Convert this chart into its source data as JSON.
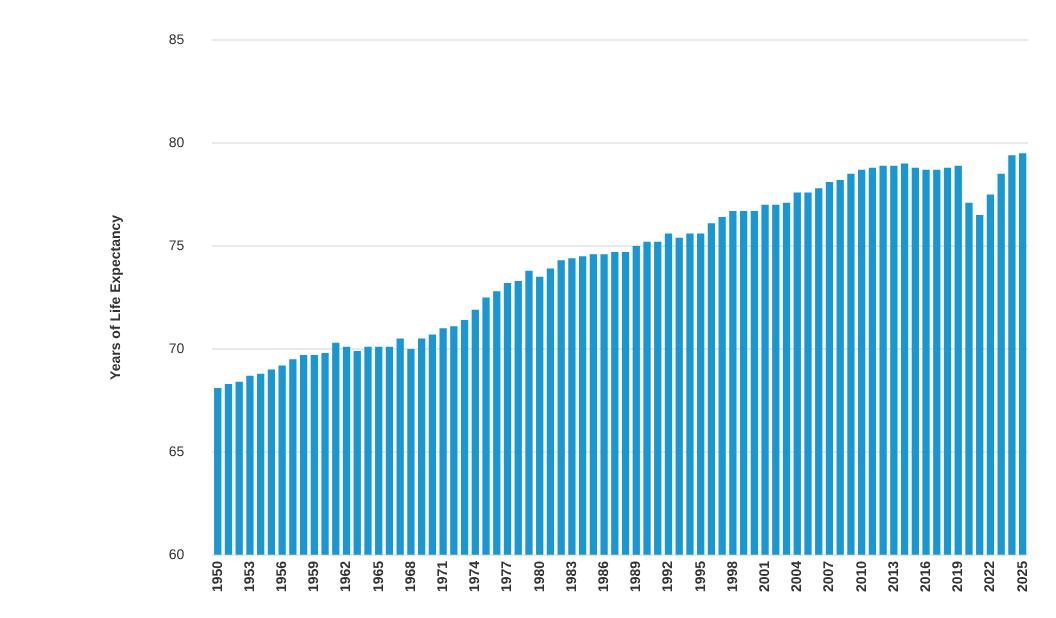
{
  "chart_data": {
    "type": "bar",
    "ylabel": "Years of Life Expectancy",
    "categories": [
      "1950",
      null,
      null,
      "1953",
      null,
      null,
      "1956",
      null,
      null,
      "1959",
      null,
      null,
      "1962",
      null,
      null,
      "1965",
      null,
      null,
      "1968",
      null,
      null,
      "1971",
      null,
      null,
      "1974",
      null,
      null,
      "1977",
      null,
      null,
      "1980",
      null,
      null,
      "1983",
      null,
      null,
      "1986",
      null,
      null,
      "1989",
      null,
      null,
      "1992",
      null,
      null,
      "1995",
      null,
      null,
      "1998",
      null,
      null,
      "2001",
      null,
      null,
      "2004",
      null,
      null,
      "2007",
      null,
      null,
      "2010",
      null,
      null,
      "2013",
      null,
      null,
      "2016",
      null,
      null,
      "2019",
      null,
      null,
      "2022",
      null,
      null,
      "2025"
    ],
    "values": [
      68.1,
      68.3,
      68.4,
      68.7,
      68.8,
      69.0,
      69.2,
      69.5,
      69.7,
      69.7,
      69.8,
      70.3,
      70.1,
      69.9,
      70.1,
      70.1,
      70.1,
      70.5,
      70.0,
      70.5,
      70.7,
      71.0,
      71.1,
      71.4,
      71.9,
      72.5,
      72.8,
      73.2,
      73.3,
      73.8,
      73.5,
      73.9,
      74.3,
      74.4,
      74.5,
      74.6,
      74.6,
      74.7,
      74.7,
      75.0,
      75.2,
      75.2,
      75.6,
      75.4,
      75.6,
      75.6,
      76.1,
      76.4,
      76.7,
      76.7,
      76.7,
      77.0,
      77.0,
      77.1,
      77.6,
      77.6,
      77.8,
      78.1,
      78.2,
      78.5,
      78.7,
      78.8,
      78.9,
      78.9,
      79.0,
      78.8,
      78.7,
      78.7,
      78.8,
      78.9,
      77.1,
      76.5,
      77.5,
      78.5,
      79.4,
      79.5
    ],
    "color": "#1a96d0",
    "ylim": [
      60,
      85
    ],
    "yticks": [
      60,
      65,
      70,
      75,
      80,
      85
    ],
    "grid": "y"
  }
}
